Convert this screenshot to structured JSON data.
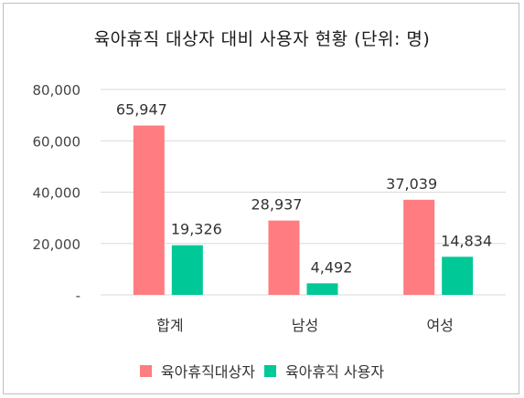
{
  "chart_data": {
    "type": "bar",
    "title": "육아휴직 대상자 대비 사용자 현황 (단위: 명)",
    "categories": [
      "합계",
      "남성",
      "여성"
    ],
    "series": [
      {
        "name": "육아휴직대상자",
        "values": [
          65947,
          28937,
          37039
        ],
        "labels": [
          "65,947",
          "28,937",
          "37,039"
        ],
        "color": "#ff7c80"
      },
      {
        "name": "육아휴직 사용자",
        "values": [
          19326,
          4492,
          14834
        ],
        "labels": [
          "19,326",
          "4,492",
          "14,834"
        ],
        "color": "#00c896"
      }
    ],
    "yticks": [
      "-",
      "20,000",
      "40,000",
      "60,000",
      "80,000"
    ],
    "ytick_values": [
      0,
      20000,
      40000,
      60000,
      80000
    ],
    "ylim": [
      0,
      80000
    ],
    "grid": true,
    "legend_position": "bottom"
  }
}
